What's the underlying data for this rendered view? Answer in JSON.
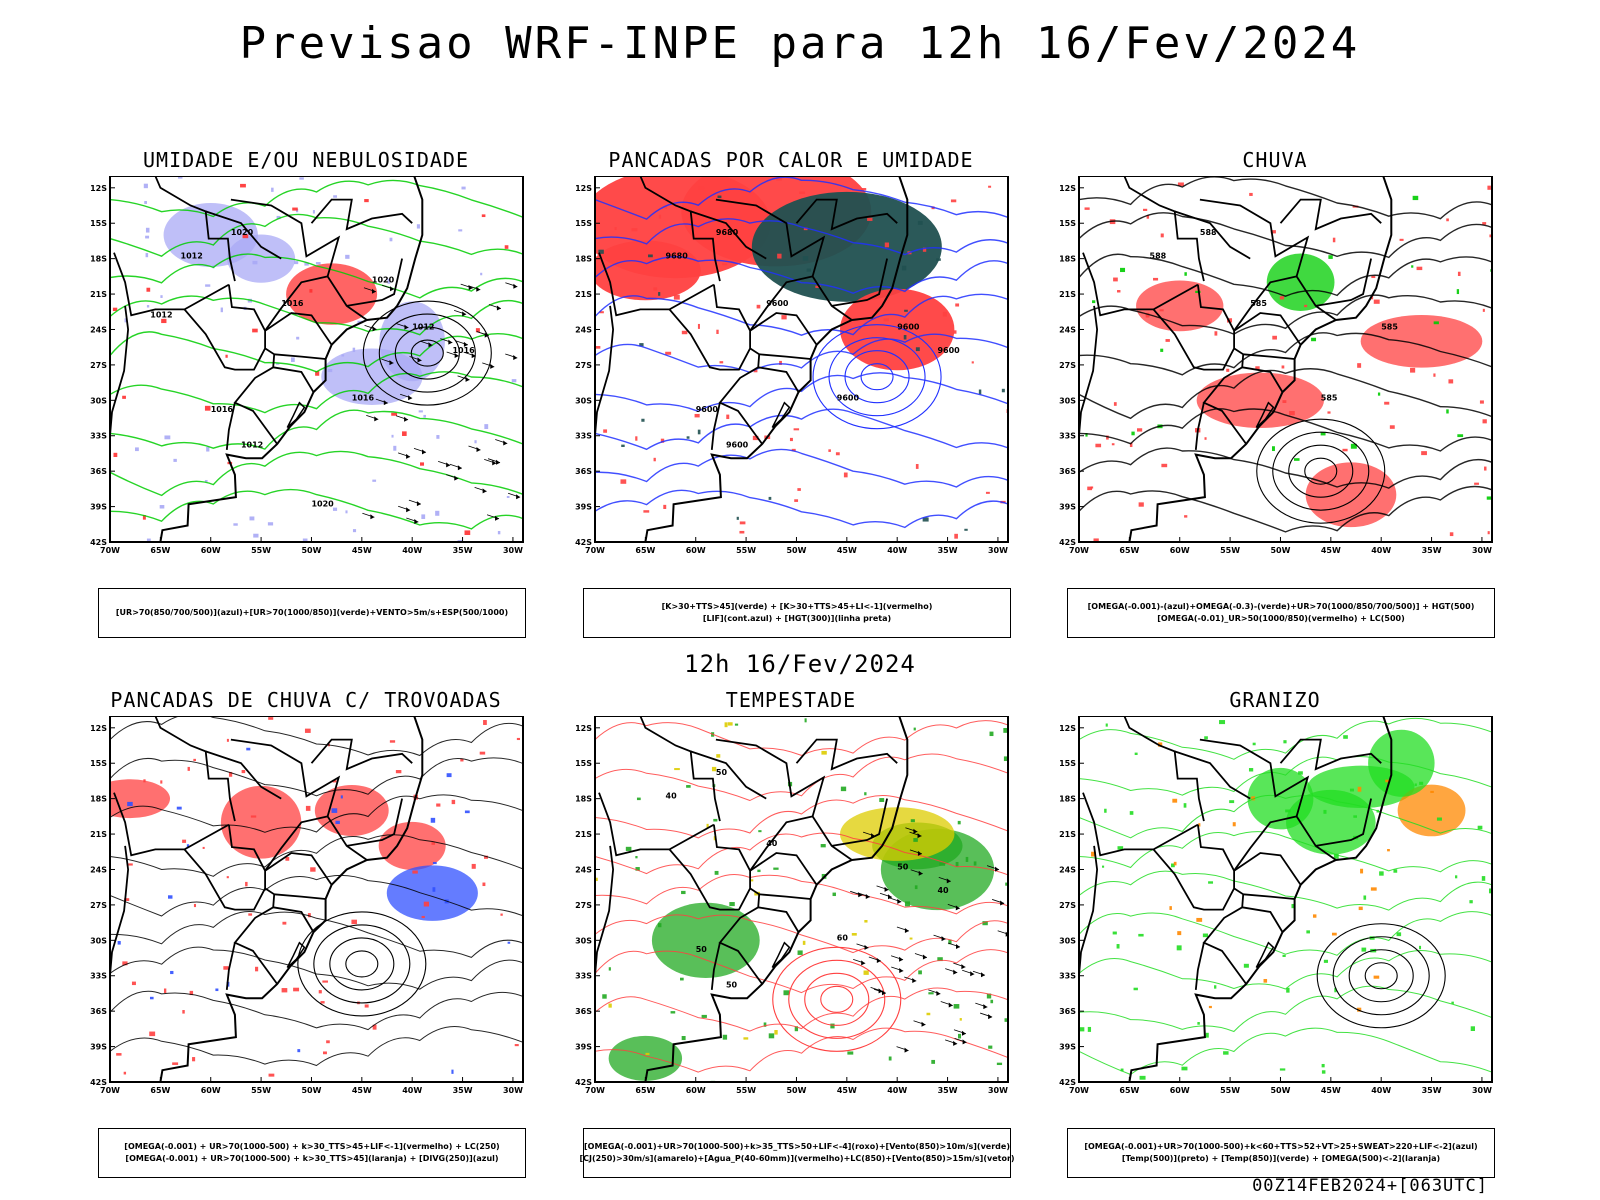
{
  "title": "Previsao WRF-INPE  para 12h 16/Fev/2024",
  "subtitle": "12h 16/Fev/2024",
  "footer": "00Z14FEB2024+[063UTC]",
  "axes": {
    "lon_labels": [
      "70W",
      "65W",
      "60W",
      "55W",
      "50W",
      "45W",
      "40W",
      "35W",
      "30W"
    ],
    "lat_labels": [
      "12S",
      "15S",
      "18S",
      "21S",
      "24S",
      "27S",
      "30S",
      "33S",
      "36S",
      "39S",
      "42S"
    ]
  },
  "panels": [
    {
      "id": "umidade",
      "title": "UMIDADE E/OU NEBULOSIDADE",
      "legend": [
        "[UR>70(850/700/500)](azul)+[UR>70(1000/850)](verde)+VENTO>5m/s+ESP(500/1000)"
      ],
      "colors": {
        "fill": "#a9a9f5",
        "line": "#00cc00",
        "accent": "#ff3030"
      },
      "contour_labels": [
        "1012",
        "1020",
        "1016",
        "1012",
        "1016",
        "1012",
        "1016",
        "1016",
        "1020",
        "1020",
        "1012"
      ]
    },
    {
      "id": "pancadas-calor",
      "title": "PANCADAS POR CALOR E UMIDADE",
      "legend": [
        "[K>30+TTS>45](verde) + [K>30+TTS>45+LI<-1](vermelho)",
        "[LIF](cont.azul) + [HGT(300)](linha preta)"
      ],
      "colors": {
        "fill": "#ff4040",
        "line": "#2030ff",
        "accent": "#205050"
      },
      "contour_labels": [
        "9680",
        "9680",
        "9600",
        "9600",
        "9600",
        "9600",
        "9600",
        "9600"
      ]
    },
    {
      "id": "chuva",
      "title": "CHUVA",
      "legend": [
        "[OMEGA(-0.001)-(azul)+OMEGA(-0.3)-(verde)+UR>70(1000/850/700/500)] + HGT(500)",
        "[OMEGA(-0.01)_UR>50(1000/850)(vermelho) + LC(500)"
      ],
      "colors": {
        "fill": "#ff4040",
        "line": "#000000",
        "accent": "#00cc00"
      },
      "contour_labels": [
        "588",
        "588",
        "585",
        "585",
        "585"
      ]
    },
    {
      "id": "trovoadas",
      "title": "PANCADAS DE CHUVA C/ TROVOADAS",
      "legend": [
        "[OMEGA(-0.001) + UR>70(1000-500) + k>30_TTS>45+LIF<-1](vermelho) + LC(250)",
        "[OMEGA(-0.001) + UR>70(1000-500) + k>30_TTS>45](laranja) + [DIVG(250)](azul)"
      ],
      "colors": {
        "fill": "#ff4040",
        "line": "#000000",
        "accent": "#3050ff"
      },
      "contour_labels": []
    },
    {
      "id": "tempestade",
      "title": "TEMPESTADE",
      "legend": [
        "[OMEGA(-0.001)+UR>70(1000-500)+k>35_TTS>50+LIF<-4](roxo)+[Vento(850)>10m/s](verde)",
        "[CJ(250)>30m/s](amarelo)+[Agua_P(40-60mm)](vermelho)+LC(850)+[Vento(850)>15m/s](vetor)"
      ],
      "colors": {
        "fill": "#22aa22",
        "line": "#ff4040",
        "accent": "#ddcc00"
      },
      "contour_labels": [
        "40",
        "50",
        "40",
        "50",
        "60",
        "50",
        "40",
        "50"
      ]
    },
    {
      "id": "granizo",
      "title": "GRANIZO",
      "legend": [
        "[OMEGA(-0.001)+UR>70(1000-500)+k<60+TTS>52+VT>25+SWEAT>220+LIF<-2](azul)",
        "[Temp(500)](preto) + [Temp(850)](verde) + [OMEGA(500)<-2](laranja)"
      ],
      "colors": {
        "fill": "#22dd22",
        "line": "#22dd22",
        "accent": "#ff8800"
      },
      "contour_labels": []
    }
  ]
}
